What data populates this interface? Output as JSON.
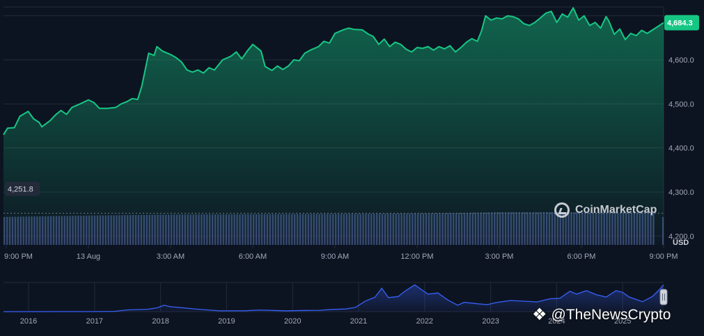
{
  "chart_data": {
    "type": "area",
    "currency": "USD",
    "y_ticks": [
      "4,200.0",
      "4,300.0",
      "4,400.0",
      "4,500.0",
      "4,600.0"
    ],
    "ylim": [
      4180,
      4720
    ],
    "x_ticks": [
      "9:00 PM",
      "13 Aug",
      "3:00 AM",
      "6:00 AM",
      "9:00 AM",
      "12:00 PM",
      "3:00 PM",
      "6:00 PM",
      "9:00 PM"
    ],
    "x_tick_hours": [
      0,
      3,
      6,
      9,
      12,
      15,
      18,
      21,
      24
    ],
    "x_range_hours": [
      -0.1,
      24.0
    ],
    "current_price": 4684.3,
    "current_price_label": "4,684.3",
    "reference_price": 4251.8,
    "reference_price_label": "4,251.8",
    "price_series": [
      [
        -0.1,
        4430
      ],
      [
        0.05,
        4445
      ],
      [
        0.3,
        4446
      ],
      [
        0.5,
        4472
      ],
      [
        0.8,
        4483
      ],
      [
        1.0,
        4466
      ],
      [
        1.2,
        4458
      ],
      [
        1.3,
        4448
      ],
      [
        1.6,
        4462
      ],
      [
        1.8,
        4475
      ],
      [
        2.0,
        4485
      ],
      [
        2.2,
        4476
      ],
      [
        2.4,
        4492
      ],
      [
        2.7,
        4500
      ],
      [
        3.0,
        4509
      ],
      [
        3.2,
        4503
      ],
      [
        3.4,
        4490
      ],
      [
        3.7,
        4490
      ],
      [
        4.0,
        4492
      ],
      [
        4.2,
        4500
      ],
      [
        4.4,
        4505
      ],
      [
        4.6,
        4512
      ],
      [
        4.8,
        4510
      ],
      [
        4.95,
        4540
      ],
      [
        5.2,
        4615
      ],
      [
        5.4,
        4610
      ],
      [
        5.5,
        4630
      ],
      [
        5.7,
        4620
      ],
      [
        6.0,
        4612
      ],
      [
        6.2,
        4605
      ],
      [
        6.4,
        4595
      ],
      [
        6.6,
        4577
      ],
      [
        6.8,
        4572
      ],
      [
        7.0,
        4577
      ],
      [
        7.2,
        4570
      ],
      [
        7.4,
        4582
      ],
      [
        7.6,
        4577
      ],
      [
        7.9,
        4600
      ],
      [
        8.2,
        4608
      ],
      [
        8.4,
        4618
      ],
      [
        8.6,
        4602
      ],
      [
        8.8,
        4620
      ],
      [
        9.0,
        4635
      ],
      [
        9.3,
        4620
      ],
      [
        9.45,
        4585
      ],
      [
        9.7,
        4576
      ],
      [
        9.9,
        4586
      ],
      [
        10.1,
        4578
      ],
      [
        10.3,
        4586
      ],
      [
        10.5,
        4600
      ],
      [
        10.7,
        4598
      ],
      [
        10.9,
        4615
      ],
      [
        11.1,
        4622
      ],
      [
        11.4,
        4630
      ],
      [
        11.6,
        4642
      ],
      [
        11.8,
        4638
      ],
      [
        12.0,
        4660
      ],
      [
        12.3,
        4668
      ],
      [
        12.5,
        4672
      ],
      [
        12.7,
        4669
      ],
      [
        13.0,
        4668
      ],
      [
        13.2,
        4659
      ],
      [
        13.4,
        4653
      ],
      [
        13.6,
        4635
      ],
      [
        13.8,
        4647
      ],
      [
        14.0,
        4630
      ],
      [
        14.2,
        4640
      ],
      [
        14.4,
        4635
      ],
      [
        14.6,
        4624
      ],
      [
        14.8,
        4618
      ],
      [
        15.0,
        4628
      ],
      [
        15.2,
        4626
      ],
      [
        15.4,
        4630
      ],
      [
        15.6,
        4622
      ],
      [
        15.8,
        4630
      ],
      [
        16.0,
        4625
      ],
      [
        16.2,
        4632
      ],
      [
        16.4,
        4618
      ],
      [
        16.6,
        4628
      ],
      [
        16.8,
        4640
      ],
      [
        17.0,
        4648
      ],
      [
        17.2,
        4642
      ],
      [
        17.35,
        4665
      ],
      [
        17.5,
        4700
      ],
      [
        17.7,
        4690
      ],
      [
        17.9,
        4695
      ],
      [
        18.1,
        4693
      ],
      [
        18.3,
        4700
      ],
      [
        18.5,
        4698
      ],
      [
        18.7,
        4693
      ],
      [
        18.9,
        4682
      ],
      [
        19.1,
        4678
      ],
      [
        19.3,
        4685
      ],
      [
        19.5,
        4695
      ],
      [
        19.7,
        4706
      ],
      [
        19.9,
        4710
      ],
      [
        20.1,
        4685
      ],
      [
        20.3,
        4704
      ],
      [
        20.5,
        4697
      ],
      [
        20.7,
        4718
      ],
      [
        20.9,
        4690
      ],
      [
        21.1,
        4700
      ],
      [
        21.3,
        4678
      ],
      [
        21.5,
        4685
      ],
      [
        21.7,
        4672
      ],
      [
        21.9,
        4698
      ],
      [
        22.0,
        4688
      ],
      [
        22.2,
        4658
      ],
      [
        22.4,
        4670
      ],
      [
        22.6,
        4646
      ],
      [
        22.8,
        4660
      ],
      [
        23.0,
        4655
      ],
      [
        23.2,
        4667
      ],
      [
        23.4,
        4660
      ],
      [
        23.6,
        4668
      ],
      [
        23.8,
        4676
      ],
      [
        24.0,
        4684.3
      ]
    ],
    "volume_relative": [
      [
        -0.1,
        0.82
      ],
      [
        3.0,
        0.86
      ],
      [
        6.0,
        0.89
      ],
      [
        9.0,
        0.9
      ],
      [
        12.0,
        0.91
      ],
      [
        15.0,
        0.92
      ],
      [
        18.0,
        0.96
      ],
      [
        20.0,
        0.96
      ],
      [
        22.0,
        0.95
      ],
      [
        23.7,
        0.95
      ]
    ],
    "overview_x_ticks": [
      "2016",
      "2017",
      "2018",
      "2019",
      "2020",
      "2021",
      "2022",
      "2023",
      "2024",
      "2025"
    ],
    "overview_x_years": [
      2016,
      2017,
      2018,
      2019,
      2020,
      2021,
      2022,
      2023,
      2024,
      2025
    ],
    "overview_x_range": [
      2015.62,
      2025.62
    ],
    "overview_ylim": [
      0,
      5000
    ],
    "overview_series": [
      [
        2015.62,
        1
      ],
      [
        2016.5,
        10
      ],
      [
        2017.0,
        10
      ],
      [
        2017.3,
        50
      ],
      [
        2017.5,
        300
      ],
      [
        2017.8,
        400
      ],
      [
        2017.95,
        650
      ],
      [
        2018.05,
        1100
      ],
      [
        2018.15,
        850
      ],
      [
        2018.3,
        700
      ],
      [
        2018.5,
        480
      ],
      [
        2018.7,
        300
      ],
      [
        2018.9,
        130
      ],
      [
        2019.3,
        160
      ],
      [
        2019.5,
        280
      ],
      [
        2019.7,
        200
      ],
      [
        2019.9,
        140
      ],
      [
        2020.2,
        200
      ],
      [
        2020.4,
        230
      ],
      [
        2020.6,
        380
      ],
      [
        2020.8,
        450
      ],
      [
        2020.95,
        730
      ],
      [
        2021.1,
        1800
      ],
      [
        2021.25,
        2500
      ],
      [
        2021.35,
        4000
      ],
      [
        2021.45,
        2400
      ],
      [
        2021.6,
        2600
      ],
      [
        2021.7,
        3500
      ],
      [
        2021.85,
        4600
      ],
      [
        2021.95,
        3800
      ],
      [
        2022.05,
        3000
      ],
      [
        2022.2,
        3200
      ],
      [
        2022.35,
        2000
      ],
      [
        2022.5,
        1100
      ],
      [
        2022.6,
        1600
      ],
      [
        2022.8,
        1350
      ],
      [
        2022.95,
        1200
      ],
      [
        2023.1,
        1600
      ],
      [
        2023.3,
        1900
      ],
      [
        2023.5,
        1800
      ],
      [
        2023.7,
        1650
      ],
      [
        2023.9,
        2200
      ],
      [
        2024.05,
        2300
      ],
      [
        2024.2,
        3500
      ],
      [
        2024.3,
        3000
      ],
      [
        2024.45,
        3600
      ],
      [
        2024.6,
        2900
      ],
      [
        2024.75,
        2500
      ],
      [
        2024.9,
        3600
      ],
      [
        2025.0,
        3300
      ],
      [
        2025.1,
        2500
      ],
      [
        2025.3,
        1700
      ],
      [
        2025.45,
        2600
      ],
      [
        2025.55,
        3700
      ],
      [
        2025.62,
        4600
      ]
    ]
  },
  "watermarks": {
    "coinmarketcap": "CoinMarketCap",
    "thenewscrypto": "@TheNewsCrypto"
  },
  "colors": {
    "background": "#0d1421",
    "line": "#16c784",
    "grid": "#222b3b",
    "volume": "#3d4a7a",
    "overview_line": "#3861fb",
    "axis_text": "#a1a7bb"
  }
}
